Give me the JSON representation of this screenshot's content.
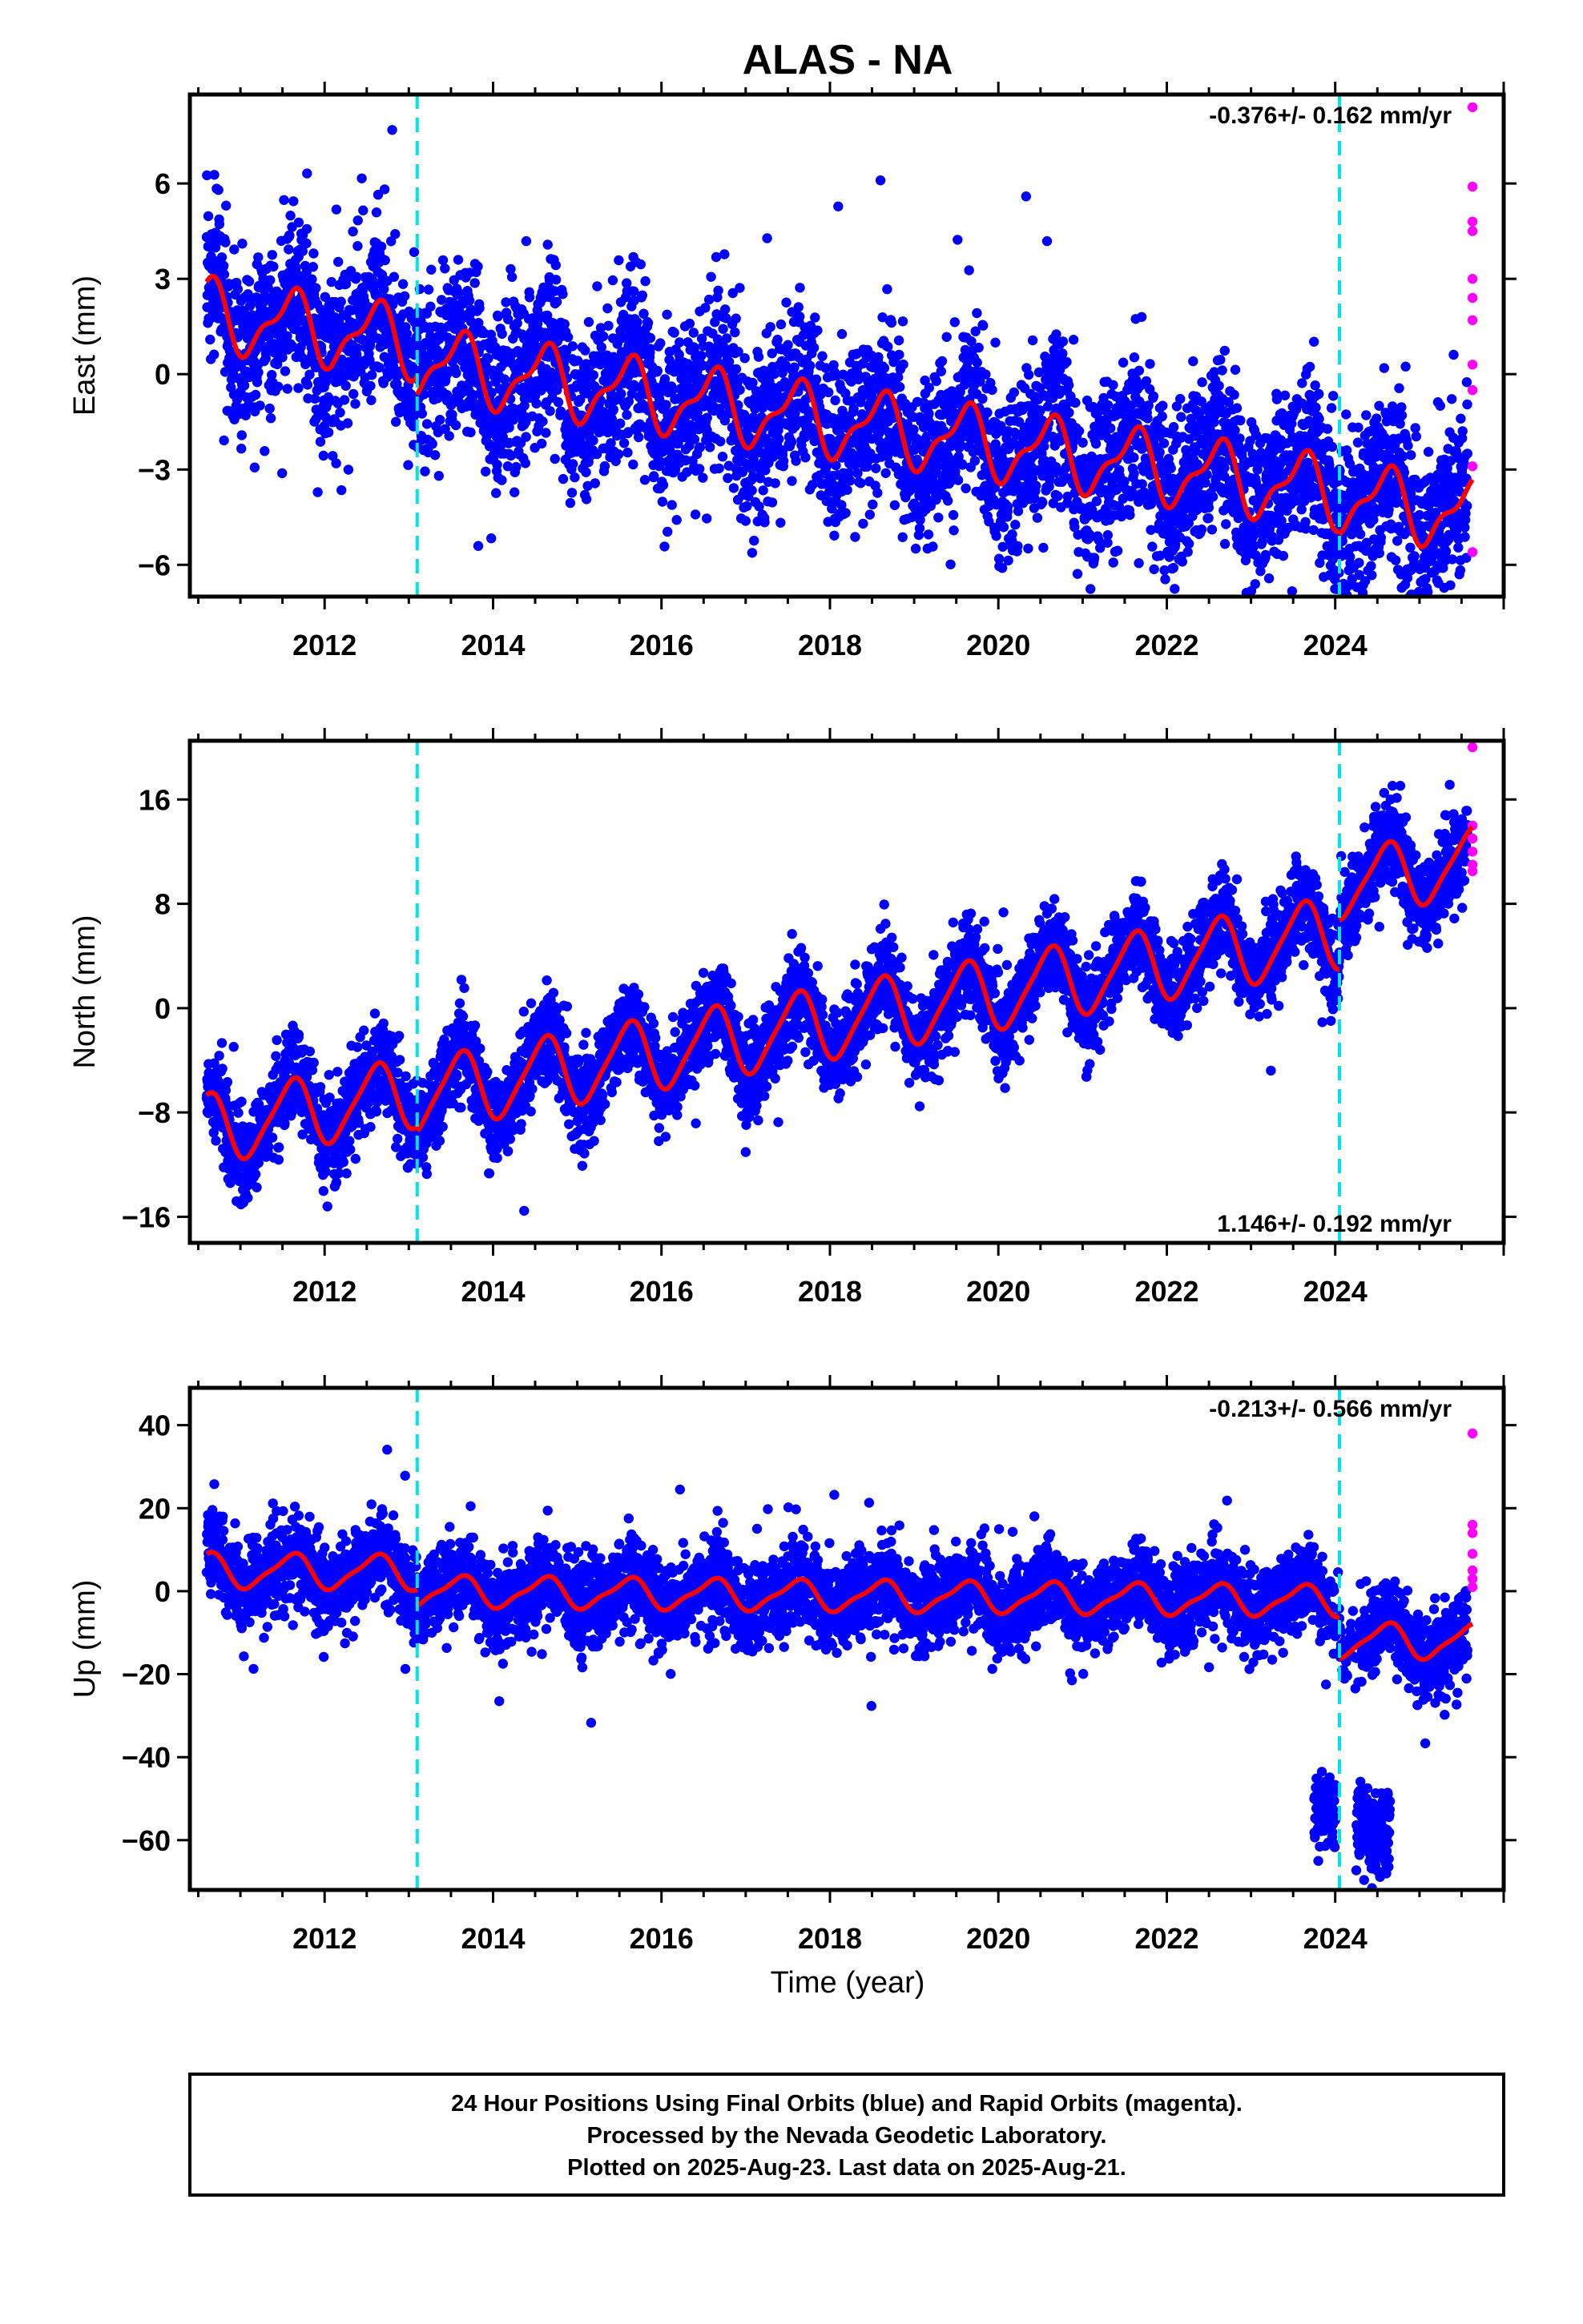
{
  "title": "ALAS - NA",
  "xlabel": "Time (year)",
  "footer": {
    "line1": "24 Hour Positions Using Final Orbits (blue) and Rapid Orbits (magenta).",
    "line2": "Processed by the Nevada Geodetic Laboratory.",
    "line3": "Plotted on 2025-Aug-23. Last data on 2025-Aug-21."
  },
  "colors": {
    "final": "#0000ff",
    "rapid": "#ff00ff",
    "model": "#ff0000",
    "offsets": "#00e5e5",
    "frame": "#000000"
  },
  "chart_data": [
    {
      "type": "scatter",
      "panel": "east",
      "ylabel": "East (mm)",
      "rate_text": "-0.376+/- 0.162 mm/yr",
      "rate_position": "top-right",
      "xlim": [
        2010.4,
        2026.0
      ],
      "ylim": [
        -7.0,
        8.8
      ],
      "xticks": [
        2012,
        2014,
        2016,
        2018,
        2020,
        2022,
        2024
      ],
      "yticks": [
        6,
        3,
        0,
        -3,
        -6
      ],
      "ytick_labels": [
        "6",
        "3",
        "0",
        "−3",
        "−6"
      ],
      "offset_lines": [
        2013.1,
        2024.05
      ],
      "data_start": 2010.6,
      "data_end": 2025.63,
      "rate": -0.376,
      "model": {
        "segments": [
          {
            "start": 2010.6,
            "end": 2013.1,
            "intercept": 1.9,
            "annual_amp": 1.0,
            "semiannual_amp": 0.4
          },
          {
            "start": 2013.1,
            "end": 2024.05,
            "intercept": 1.3,
            "annual_amp": 1.0,
            "semiannual_amp": 0.4
          },
          {
            "start": 2024.05,
            "end": 2025.63,
            "intercept": 1.2,
            "annual_amp": 1.0,
            "semiannual_amp": 0.4
          }
        ]
      },
      "scatter": {
        "sigma": 1.3
      },
      "rapid": [
        8.4,
        5.9,
        4.8,
        4.5,
        3.0,
        2.4,
        1.7,
        0.3,
        -0.5,
        -2.9,
        -5.6
      ]
    },
    {
      "type": "scatter",
      "panel": "north",
      "ylabel": "North (mm)",
      "rate_text": "1.146+/- 0.192 mm/yr",
      "rate_position": "bottom-right",
      "xlim": [
        2010.4,
        2026.0
      ],
      "ylim": [
        -18.0,
        20.5
      ],
      "xticks": [
        2012,
        2014,
        2016,
        2018,
        2020,
        2022,
        2024
      ],
      "yticks": [
        16,
        8,
        0,
        -8,
        -16
      ],
      "ytick_labels": [
        "16",
        "8",
        "0",
        "−8",
        "−16"
      ],
      "offset_lines": [
        2013.1,
        2024.05
      ],
      "data_start": 2010.6,
      "data_end": 2025.63,
      "rate": 1.146,
      "model": {
        "segments": [
          {
            "start": 2010.6,
            "end": 2013.1,
            "intercept": -9.3,
            "annual_amp": 2.6,
            "semiannual_amp": 0.5
          },
          {
            "start": 2013.1,
            "end": 2024.05,
            "intercept": -9.6,
            "annual_amp": 2.7,
            "semiannual_amp": 0.5
          },
          {
            "start": 2024.05,
            "end": 2025.63,
            "intercept": -6.0,
            "annual_amp": 2.5,
            "semiannual_amp": 0.5
          }
        ]
      },
      "scatter": {
        "sigma": 1.7
      },
      "rapid": [
        20.0,
        14.0,
        13.0,
        12.0,
        11.0,
        10.5
      ]
    },
    {
      "type": "scatter",
      "panel": "up",
      "ylabel": "Up (mm)",
      "rate_text": "-0.213+/- 0.566 mm/yr",
      "rate_position": "top-right",
      "xlim": [
        2010.4,
        2026.0
      ],
      "ylim": [
        -72.0,
        49.0
      ],
      "xticks": [
        2012,
        2014,
        2016,
        2018,
        2020,
        2022,
        2024
      ],
      "yticks": [
        40,
        20,
        0,
        -20,
        -40,
        -60
      ],
      "ytick_labels": [
        "40",
        "20",
        "0",
        "−20",
        "−40",
        "−60"
      ],
      "offset_lines": [
        2013.1,
        2024.05
      ],
      "data_start": 2010.6,
      "data_end": 2025.63,
      "rate": -0.213,
      "model": {
        "segments": [
          {
            "start": 2010.6,
            "end": 2013.1,
            "intercept": 5.0,
            "annual_amp": 4.0,
            "semiannual_amp": 1.0
          },
          {
            "start": 2013.1,
            "end": 2024.05,
            "intercept": 0.5,
            "annual_amp": 3.5,
            "semiannual_amp": 1.0
          },
          {
            "start": 2024.05,
            "end": 2025.63,
            "intercept": -9.0,
            "annual_amp": 4.0,
            "semiannual_amp": 1.0
          }
        ]
      },
      "scatter": {
        "sigma": 5.0
      },
      "outlier_clusters": [
        {
          "start": 2023.75,
          "end": 2024.0,
          "center": -52,
          "sigma": 4
        },
        {
          "start": 2024.25,
          "end": 2024.65,
          "center": -58,
          "sigma": 5
        }
      ],
      "rapid": [
        38.0,
        16.0,
        14.0,
        9.0,
        5.0,
        3.0,
        1.0
      ]
    }
  ]
}
